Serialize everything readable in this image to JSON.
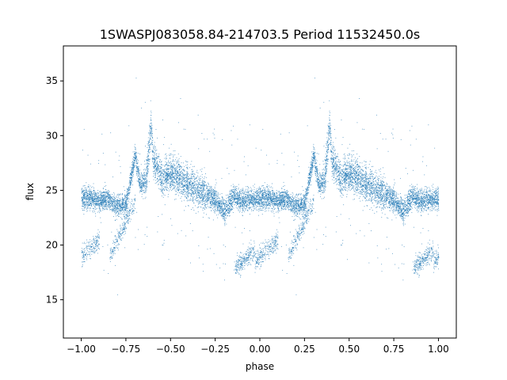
{
  "chart_data": {
    "type": "scatter",
    "title": "1SWASPJ083058.84-214703.5 Period 11532450.0s",
    "xlabel": "phase",
    "ylabel": "flux",
    "xlim": [
      -1.1,
      1.1
    ],
    "ylim": [
      11.5,
      38.2
    ],
    "xticks": [
      {
        "value": -1.0,
        "label": "−1.00"
      },
      {
        "value": -0.75,
        "label": "−0.75"
      },
      {
        "value": -0.5,
        "label": "−0.50"
      },
      {
        "value": -0.25,
        "label": "−0.25"
      },
      {
        "value": 0.0,
        "label": "0.00"
      },
      {
        "value": 0.25,
        "label": "0.25"
      },
      {
        "value": 0.5,
        "label": "0.50"
      },
      {
        "value": 0.75,
        "label": "0.75"
      },
      {
        "value": 1.0,
        "label": "1.00"
      }
    ],
    "yticks": [
      {
        "value": 15,
        "label": "15"
      },
      {
        "value": 20,
        "label": "20"
      },
      {
        "value": 25,
        "label": "25"
      },
      {
        "value": 30,
        "label": "30"
      },
      {
        "value": 35,
        "label": "35"
      }
    ],
    "grid": false,
    "legend": "none",
    "marker_color": "#1f77b4",
    "series": [
      {
        "phase_repeats": true,
        "profile": [
          {
            "x": 0.0,
            "y": 24.2
          },
          {
            "x": 0.05,
            "y": 24.3
          },
          {
            "x": 0.1,
            "y": 24.0
          },
          {
            "x": 0.15,
            "y": 24.2
          },
          {
            "x": 0.2,
            "y": 23.6
          },
          {
            "x": 0.25,
            "y": 23.8
          },
          {
            "x": 0.28,
            "y": 26.5
          },
          {
            "x": 0.3,
            "y": 28.2
          },
          {
            "x": 0.33,
            "y": 25.5
          },
          {
            "x": 0.36,
            "y": 25.8
          },
          {
            "x": 0.39,
            "y": 31.0
          },
          {
            "x": 0.4,
            "y": 28.0
          },
          {
            "x": 0.45,
            "y": 26.0
          },
          {
            "x": 0.5,
            "y": 26.6
          },
          {
            "x": 0.55,
            "y": 26.2
          },
          {
            "x": 0.6,
            "y": 25.6
          },
          {
            "x": 0.65,
            "y": 25.1
          },
          {
            "x": 0.7,
            "y": 24.6
          },
          {
            "x": 0.75,
            "y": 24.1
          },
          {
            "x": 0.8,
            "y": 23.0
          },
          {
            "x": 0.85,
            "y": 24.5
          },
          {
            "x": 0.9,
            "y": 24.1
          },
          {
            "x": 0.95,
            "y": 24.3
          },
          {
            "x": 1.0,
            "y": 24.2
          }
        ],
        "low_branches": [
          {
            "x": [
              -0.03,
              0.1
            ],
            "y": [
              18.5,
              20.5
            ]
          },
          {
            "x": [
              0.16,
              0.3
            ],
            "y": [
              19.0,
              24.0
            ]
          },
          {
            "x": [
              0.86,
              0.97
            ],
            "y": [
              18.0,
              19.5
            ]
          }
        ]
      }
    ]
  }
}
